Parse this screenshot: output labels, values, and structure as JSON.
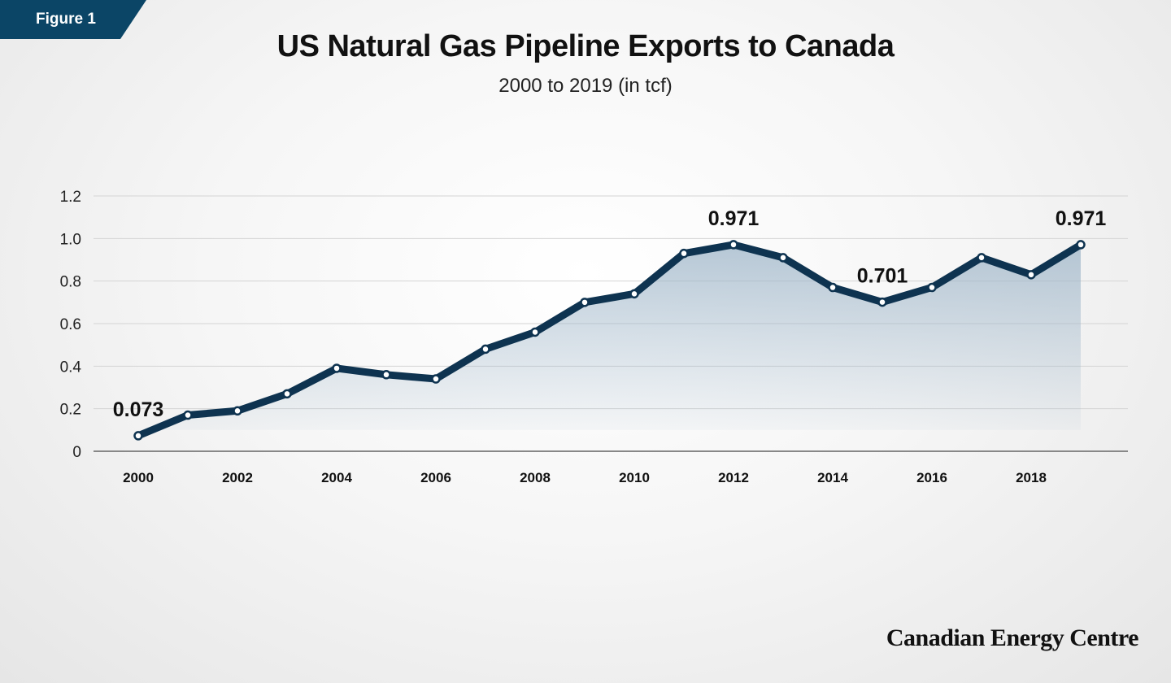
{
  "badge": {
    "label": "Figure 1",
    "color": "#0b4566"
  },
  "brand": "Canadian Energy Centre",
  "chart_data": {
    "type": "area",
    "title": "US Natural Gas Pipeline Exports to Canada",
    "subtitle": "2000 to 2019 (in tcf)",
    "xlabel": "",
    "ylabel": "",
    "x": [
      2000,
      2001,
      2002,
      2003,
      2004,
      2005,
      2006,
      2007,
      2008,
      2009,
      2010,
      2011,
      2012,
      2013,
      2014,
      2015,
      2016,
      2017,
      2018,
      2019
    ],
    "values": [
      0.073,
      0.17,
      0.19,
      0.27,
      0.39,
      0.36,
      0.34,
      0.48,
      0.56,
      0.7,
      0.74,
      0.93,
      0.971,
      0.91,
      0.77,
      0.701,
      0.77,
      0.91,
      0.83,
      0.971
    ],
    "ylim": [
      0,
      1.2
    ],
    "yticks": [
      "0",
      "0.2",
      "0.4",
      "0.6",
      "0.8",
      "1.0",
      "1.2"
    ],
    "xticks": [
      "2000",
      "2002",
      "2004",
      "2006",
      "2008",
      "2010",
      "2012",
      "2014",
      "2016",
      "2018"
    ],
    "annotations": [
      {
        "x": 2000,
        "text": "0.073"
      },
      {
        "x": 2012,
        "text": "0.971"
      },
      {
        "x": 2015,
        "text": "0.701"
      },
      {
        "x": 2019,
        "text": "0.971"
      }
    ],
    "grid": true,
    "line_color": "#0e3350",
    "fill_color": "#9fb6c9"
  }
}
